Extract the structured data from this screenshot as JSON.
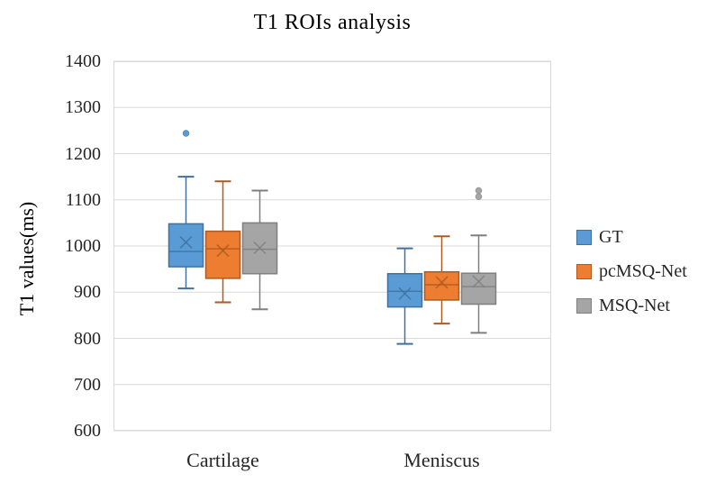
{
  "chart_data": {
    "type": "boxplot",
    "title": "T1 ROIs analysis",
    "ylabel": "T1 values(ms)",
    "xlabel": "",
    "ylim": [
      600,
      1400
    ],
    "yticks": [
      600,
      700,
      800,
      900,
      1000,
      1100,
      1200,
      1300,
      1400
    ],
    "grid": true,
    "legend_position": "right",
    "categories": [
      "Cartilage",
      "Meniscus"
    ],
    "colors": {
      "gridline": "#D9D9D9",
      "plot_border": "#D9D9D9",
      "tick_text": "#262626",
      "title_text": "#000000"
    },
    "series": [
      {
        "name": "GT",
        "fill": "#5B9BD5",
        "line": "#41719C",
        "boxes": [
          {
            "category": "Cartilage",
            "whisker_low": 908,
            "q1": 955,
            "median": 988,
            "mean": 1008,
            "q3": 1048,
            "whisker_high": 1150,
            "outliers": [
              1244
            ]
          },
          {
            "category": "Meniscus",
            "whisker_low": 788,
            "q1": 868,
            "median": 902,
            "mean": 897,
            "q3": 940,
            "whisker_high": 995,
            "outliers": []
          }
        ]
      },
      {
        "name": "pcMSQ-Net",
        "fill": "#ED7D31",
        "line": "#AE5A21",
        "boxes": [
          {
            "category": "Cartilage",
            "whisker_low": 878,
            "q1": 930,
            "median": 994,
            "mean": 990,
            "q3": 1032,
            "whisker_high": 1140,
            "outliers": []
          },
          {
            "category": "Meniscus",
            "whisker_low": 832,
            "q1": 883,
            "median": 916,
            "mean": 921,
            "q3": 944,
            "whisker_high": 1021,
            "outliers": []
          }
        ]
      },
      {
        "name": "MSQ-Net",
        "fill": "#A5A5A5",
        "line": "#7F7F7F",
        "boxes": [
          {
            "category": "Cartilage",
            "whisker_low": 863,
            "q1": 940,
            "median": 993,
            "mean": 996,
            "q3": 1050,
            "whisker_high": 1120,
            "outliers": []
          },
          {
            "category": "Meniscus",
            "whisker_low": 812,
            "q1": 874,
            "median": 912,
            "mean": 923,
            "q3": 941,
            "whisker_high": 1023,
            "outliers": [
              1107,
              1120
            ]
          }
        ]
      }
    ]
  }
}
